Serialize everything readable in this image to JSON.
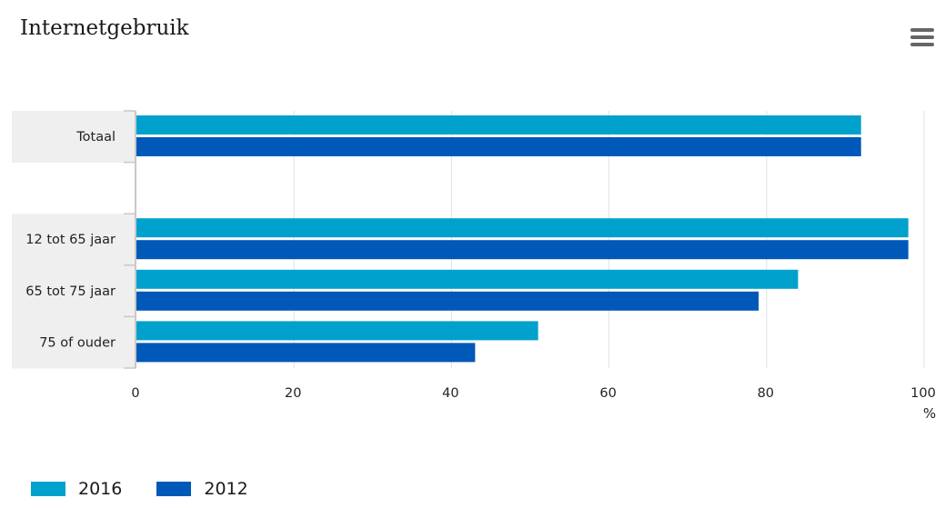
{
  "title": "Internetgebruik",
  "colors": {
    "series_2016": "#00a1cd",
    "series_2012": "#0058b8",
    "band": "#efefef",
    "grid": "#e1e1e1",
    "axis": "#c8c8c8",
    "text": "#222222"
  },
  "menu": {
    "icon": "hamburger-menu-icon"
  },
  "chart_data": {
    "type": "bar",
    "orientation": "horizontal",
    "title": "Internetgebruik",
    "categories": [
      "Totaal",
      "",
      "12 tot 65 jaar",
      "65 tot 75 jaar",
      "75 of ouder"
    ],
    "series": [
      {
        "name": "2016",
        "values": [
          92,
          null,
          98,
          84,
          51
        ]
      },
      {
        "name": "2012",
        "values": [
          92,
          null,
          98,
          79,
          43
        ]
      }
    ],
    "xlabel": "%",
    "xlim": [
      0,
      100
    ],
    "ticks": [
      0,
      20,
      40,
      60,
      80,
      100
    ],
    "highlighted_categories": [
      "Totaal",
      "12 tot 65 jaar",
      "65 tot 75 jaar",
      "75 of ouder"
    ],
    "grid": true,
    "legend": "bottom-left"
  }
}
